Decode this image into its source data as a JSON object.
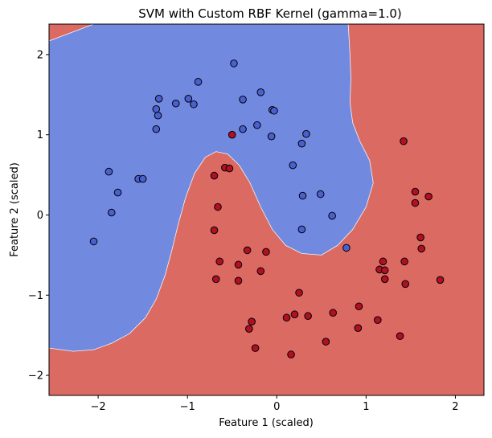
{
  "chart_data": {
    "type": "scatter",
    "title": "SVM with Custom RBF Kernel (gamma=1.0)",
    "xlabel": "Feature 1 (scaled)",
    "ylabel": "Feature 2 (scaled)",
    "xlim": [
      -2.55,
      2.32
    ],
    "ylim": [
      -2.25,
      2.38
    ],
    "xticks": [
      -2,
      -1,
      0,
      1,
      2
    ],
    "yticks": [
      -2,
      -1,
      0,
      1,
      2
    ],
    "xtick_labels": [
      "−2",
      "−1",
      "0",
      "1",
      "2"
    ],
    "ytick_labels": [
      "−2",
      "−1",
      "0",
      "1",
      "2"
    ],
    "grid": false,
    "background_region_colors": {
      "blue": "#7289e0",
      "red": "#db6b62"
    },
    "point_colors": {
      "blue": "#4a5fd0",
      "red": "#b20f22"
    },
    "decision_boundary": [
      [
        -2.05,
        2.38
      ],
      [
        -2.55,
        2.17
      ],
      [
        -2.55,
        -1.66
      ],
      [
        -2.28,
        -1.7
      ],
      [
        -2.05,
        -1.68
      ],
      [
        -1.85,
        -1.6
      ],
      [
        -1.65,
        -1.48
      ],
      [
        -1.47,
        -1.28
      ],
      [
        -1.35,
        -1.05
      ],
      [
        -1.25,
        -0.75
      ],
      [
        -1.17,
        -0.42
      ],
      [
        -1.1,
        -0.1
      ],
      [
        -1.02,
        0.22
      ],
      [
        -0.92,
        0.52
      ],
      [
        -0.8,
        0.72
      ],
      [
        -0.68,
        0.79
      ],
      [
        -0.55,
        0.76
      ],
      [
        -0.42,
        0.62
      ],
      [
        -0.3,
        0.4
      ],
      [
        -0.18,
        0.1
      ],
      [
        -0.05,
        -0.18
      ],
      [
        0.1,
        -0.38
      ],
      [
        0.28,
        -0.48
      ],
      [
        0.5,
        -0.5
      ],
      [
        0.68,
        -0.38
      ],
      [
        0.85,
        -0.18
      ],
      [
        1.0,
        0.1
      ],
      [
        1.08,
        0.4
      ],
      [
        1.04,
        0.68
      ],
      [
        0.93,
        0.92
      ],
      [
        0.85,
        1.15
      ],
      [
        0.82,
        1.4
      ],
      [
        0.83,
        1.7
      ],
      [
        0.82,
        2.0
      ],
      [
        0.8,
        2.38
      ]
    ],
    "series": [
      {
        "color": "blue",
        "points": [
          [
            -0.48,
            1.89
          ],
          [
            -0.88,
            1.66
          ],
          [
            -1.32,
            1.45
          ],
          [
            -1.35,
            1.32
          ],
          [
            -1.33,
            1.24
          ],
          [
            -1.35,
            1.07
          ],
          [
            -1.13,
            1.39
          ],
          [
            -0.99,
            1.45
          ],
          [
            -0.93,
            1.38
          ],
          [
            -0.38,
            1.44
          ],
          [
            -0.18,
            1.53
          ],
          [
            -0.05,
            1.31
          ],
          [
            -0.03,
            1.3
          ],
          [
            -0.22,
            1.12
          ],
          [
            -0.38,
            1.07
          ],
          [
            -0.06,
            0.98
          ],
          [
            0.33,
            1.01
          ],
          [
            0.28,
            0.89
          ],
          [
            0.18,
            0.62
          ],
          [
            -1.88,
            0.54
          ],
          [
            -1.55,
            0.45
          ],
          [
            -1.5,
            0.45
          ],
          [
            -1.78,
            0.28
          ],
          [
            -1.85,
            0.03
          ],
          [
            0.29,
            0.24
          ],
          [
            0.49,
            0.26
          ],
          [
            0.62,
            -0.01
          ],
          [
            0.28,
            -0.18
          ],
          [
            -2.05,
            -0.33
          ],
          [
            0.78,
            -0.41
          ]
        ]
      },
      {
        "color": "red",
        "points": [
          [
            -0.5,
            1.0
          ],
          [
            1.42,
            0.92
          ],
          [
            -0.58,
            0.59
          ],
          [
            -0.53,
            0.58
          ],
          [
            -0.7,
            0.49
          ],
          [
            1.55,
            0.29
          ],
          [
            1.7,
            0.23
          ],
          [
            1.55,
            0.15
          ],
          [
            -0.66,
            0.1
          ],
          [
            -0.7,
            -0.19
          ],
          [
            1.61,
            -0.28
          ],
          [
            1.62,
            -0.42
          ],
          [
            -0.33,
            -0.44
          ],
          [
            -0.12,
            -0.46
          ],
          [
            -0.64,
            -0.58
          ],
          [
            -0.43,
            -0.62
          ],
          [
            1.19,
            -0.58
          ],
          [
            1.43,
            -0.58
          ],
          [
            -0.18,
            -0.7
          ],
          [
            1.15,
            -0.68
          ],
          [
            1.21,
            -0.69
          ],
          [
            -0.68,
            -0.8
          ],
          [
            -0.43,
            -0.82
          ],
          [
            1.21,
            -0.8
          ],
          [
            1.44,
            -0.86
          ],
          [
            1.83,
            -0.81
          ],
          [
            0.25,
            -0.97
          ],
          [
            0.92,
            -1.14
          ],
          [
            0.2,
            -1.24
          ],
          [
            0.63,
            -1.22
          ],
          [
            0.11,
            -1.28
          ],
          [
            0.35,
            -1.26
          ],
          [
            1.13,
            -1.31
          ],
          [
            -0.28,
            -1.33
          ],
          [
            -0.31,
            -1.42
          ],
          [
            0.91,
            -1.41
          ],
          [
            1.38,
            -1.51
          ],
          [
            0.55,
            -1.58
          ],
          [
            -0.24,
            -1.66
          ],
          [
            0.16,
            -1.74
          ]
        ]
      }
    ]
  }
}
